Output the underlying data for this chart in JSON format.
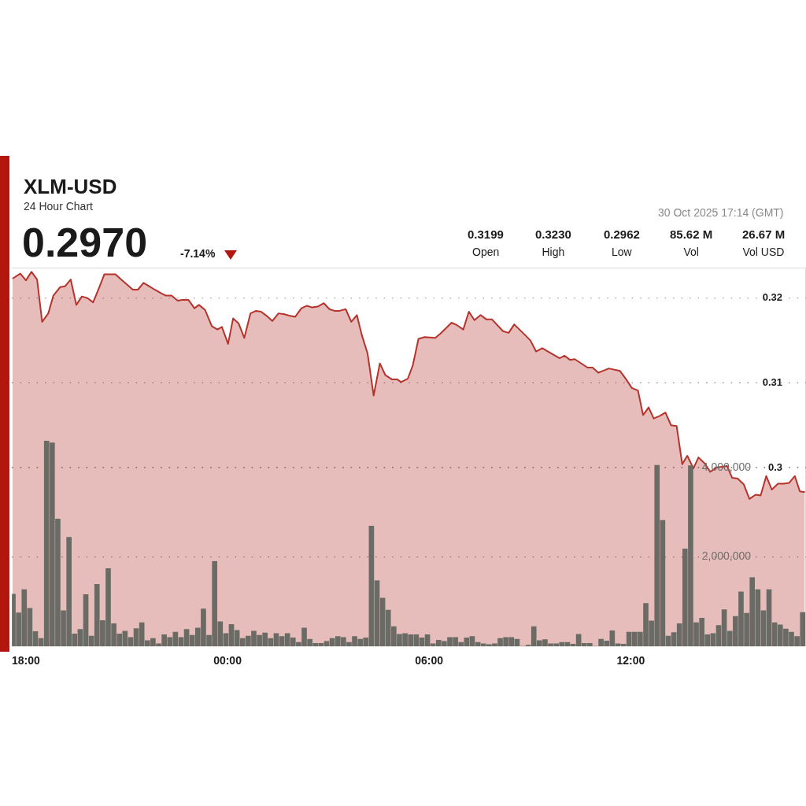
{
  "chart_data": {
    "type": "area",
    "title": "XLM-USD",
    "subtitle": "24 Hour Chart",
    "annotations": [
      "0.2970",
      "-7.14%",
      "0.3199",
      "Open",
      "0.3230",
      "High",
      "0.2962",
      "Low",
      "85.62 M",
      "Vol",
      "26.67 M",
      "Vol USD",
      "30 Oct 2025 17:14 (GMT)"
    ],
    "xlim": [
      "2025-10-29T17:35",
      "2025-10-30T17:13"
    ],
    "xticks": [
      {
        "value": "2025-10-29T18:00",
        "label": "18:00"
      },
      {
        "value": "2025-10-30T00:00",
        "label": "00:00"
      },
      {
        "value": "2025-10-30T06:00",
        "label": "06:00"
      },
      {
        "value": "2025-10-30T12:00",
        "label": "12:00"
      }
    ],
    "ylim": [
      0.2789,
      0.3236
    ],
    "yticks": [
      0.3,
      0.31,
      0.32
    ],
    "y2lim": [
      0,
      8470000
    ],
    "y2ticks": [
      {
        "value": 2000000,
        "label": "2,000,000"
      },
      {
        "value": 4000000,
        "label": "4,000,000"
      }
    ],
    "grid": "y",
    "marker": "none",
    "series": [
      {
        "color": "#b5332b",
        "x": [
          "2025-10-29T17:36",
          "2025-10-29T17:50",
          "2025-10-29T18:00",
          "2025-10-29T18:10",
          "2025-10-29T18:20",
          "2025-10-29T18:29",
          "2025-10-29T18:40",
          "2025-10-29T18:49",
          "2025-10-29T19:01",
          "2025-10-29T19:10",
          "2025-10-29T19:20",
          "2025-10-29T19:30",
          "2025-10-29T19:40",
          "2025-10-29T19:50",
          "2025-10-29T20:00",
          "2025-10-29T20:10",
          "2025-10-29T20:20",
          "2025-10-29T20:40",
          "2025-10-29T20:50",
          "2025-10-29T21:11",
          "2025-10-29T21:20",
          "2025-10-29T21:30",
          "2025-10-29T21:40",
          "2025-10-29T21:50",
          "2025-10-29T22:01",
          "2025-10-29T22:10",
          "2025-10-29T22:20",
          "2025-10-29T22:31",
          "2025-10-29T22:39",
          "2025-10-29T22:50",
          "2025-10-29T23:01",
          "2025-10-29T23:09",
          "2025-10-29T23:20",
          "2025-10-29T23:32",
          "2025-10-29T23:42",
          "2025-10-29T23:50",
          "2025-10-30T00:01",
          "2025-10-30T00:10",
          "2025-10-30T00:20",
          "2025-10-30T00:30",
          "2025-10-30T00:41",
          "2025-10-30T00:51",
          "2025-10-30T01:00",
          "2025-10-30T01:10",
          "2025-10-30T01:20",
          "2025-10-30T01:31",
          "2025-10-30T01:42",
          "2025-10-30T01:52",
          "2025-10-30T02:01",
          "2025-10-30T02:12",
          "2025-10-30T02:22",
          "2025-10-30T02:31",
          "2025-10-30T02:41",
          "2025-10-30T02:52",
          "2025-10-30T03:02",
          "2025-10-30T03:11",
          "2025-10-30T03:20",
          "2025-10-30T03:31",
          "2025-10-30T03:41",
          "2025-10-30T03:51",
          "2025-10-30T04:00",
          "2025-10-30T04:10",
          "2025-10-30T04:21",
          "2025-10-30T04:32",
          "2025-10-30T04:42",
          "2025-10-30T04:54",
          "2025-10-30T05:03",
          "2025-10-30T05:10",
          "2025-10-30T05:22",
          "2025-10-30T05:31",
          "2025-10-30T05:41",
          "2025-10-30T05:52",
          "2025-10-30T06:11",
          "2025-10-30T06:20",
          "2025-10-30T06:40",
          "2025-10-30T06:50",
          "2025-10-30T07:01",
          "2025-10-30T07:11",
          "2025-10-30T07:21",
          "2025-10-30T07:32",
          "2025-10-30T07:42",
          "2025-10-30T07:52",
          "2025-10-30T08:12",
          "2025-10-30T08:22",
          "2025-10-30T08:32",
          "2025-10-30T08:52",
          "2025-10-30T09:01",
          "2025-10-30T09:11",
          "2025-10-30T09:22",
          "2025-10-30T09:53",
          "2025-10-30T10:02",
          "2025-10-30T10:12",
          "2025-10-30T10:20",
          "2025-10-30T10:43",
          "2025-10-30T10:52",
          "2025-10-30T11:02",
          "2025-10-30T11:21",
          "2025-10-30T11:41",
          "2025-10-30T11:52",
          "2025-10-30T12:02",
          "2025-10-30T12:13",
          "2025-10-30T12:22",
          "2025-10-30T12:32",
          "2025-10-30T12:41",
          "2025-10-30T12:52",
          "2025-10-30T13:02",
          "2025-10-30T13:12",
          "2025-10-30T13:22",
          "2025-10-30T13:32",
          "2025-10-30T13:41",
          "2025-10-30T13:52",
          "2025-10-30T14:01",
          "2025-10-30T14:12",
          "2025-10-30T14:22",
          "2025-10-30T14:33",
          "2025-10-30T14:52",
          "2025-10-30T15:01",
          "2025-10-30T15:11",
          "2025-10-30T15:22",
          "2025-10-30T15:32",
          "2025-10-30T15:43",
          "2025-10-30T15:52",
          "2025-10-30T16:02",
          "2025-10-30T16:12",
          "2025-10-30T16:23",
          "2025-10-30T16:33",
          "2025-10-30T16:43",
          "2025-10-30T16:53",
          "2025-10-30T17:02",
          "2025-10-30T17:11"
        ],
        "values": [
          0.3223,
          0.3229,
          0.3221,
          0.3231,
          0.3222,
          0.3172,
          0.3182,
          0.3203,
          0.3213,
          0.3214,
          0.3222,
          0.3192,
          0.3202,
          0.32,
          0.3195,
          0.3211,
          0.3228,
          0.3228,
          0.3222,
          0.321,
          0.321,
          0.3218,
          0.3214,
          0.321,
          0.3206,
          0.3203,
          0.3203,
          0.3197,
          0.3198,
          0.3198,
          0.3188,
          0.3192,
          0.3186,
          0.3167,
          0.3163,
          0.3166,
          0.3146,
          0.3176,
          0.317,
          0.3153,
          0.3182,
          0.3185,
          0.3184,
          0.3179,
          0.3173,
          0.3182,
          0.3181,
          0.3179,
          0.3178,
          0.3188,
          0.3191,
          0.3189,
          0.319,
          0.3194,
          0.3187,
          0.3185,
          0.3185,
          0.3187,
          0.3172,
          0.318,
          0.3156,
          0.3135,
          0.3085,
          0.3123,
          0.3109,
          0.3104,
          0.3104,
          0.3101,
          0.3105,
          0.3121,
          0.3152,
          0.3154,
          0.3153,
          0.3158,
          0.3171,
          0.3168,
          0.3163,
          0.3184,
          0.3174,
          0.318,
          0.3175,
          0.3175,
          0.3161,
          0.3159,
          0.3169,
          0.3156,
          0.315,
          0.3137,
          0.3141,
          0.3129,
          0.3132,
          0.3127,
          0.3128,
          0.3118,
          0.3118,
          0.3112,
          0.3117,
          0.3114,
          0.3104,
          0.3094,
          0.3091,
          0.3062,
          0.3071,
          0.3058,
          0.3061,
          0.3065,
          0.305,
          0.3049,
          0.3004,
          0.3014,
          0.2999,
          0.3012,
          0.3005,
          0.2995,
          0.3,
          0.3002,
          0.2988,
          0.2987,
          0.298,
          0.2963,
          0.2968,
          0.2967,
          0.299,
          0.2974,
          0.2981,
          0.2981,
          0.2982,
          0.299,
          0.2972,
          0.2971
        ]
      },
      {
        "type": "bar",
        "axis": "y2",
        "color": "#6b6b66",
        "x": [
          "2025-10-29T17:37",
          "2025-10-29T17:47",
          "2025-10-29T17:57",
          "2025-10-29T18:07",
          "2025-10-29T18:17",
          "2025-10-29T18:27",
          "2025-10-29T18:37",
          "2025-10-29T18:47",
          "2025-10-29T18:57",
          "2025-10-29T19:07",
          "2025-10-29T19:17",
          "2025-10-29T19:27",
          "2025-10-29T19:37",
          "2025-10-29T19:47",
          "2025-10-29T19:57",
          "2025-10-29T20:07",
          "2025-10-29T20:17",
          "2025-10-29T20:27",
          "2025-10-29T20:37",
          "2025-10-29T20:47",
          "2025-10-29T20:57",
          "2025-10-29T21:07",
          "2025-10-29T21:17",
          "2025-10-29T21:27",
          "2025-10-29T21:37",
          "2025-10-29T21:47",
          "2025-10-29T21:57",
          "2025-10-29T22:07",
          "2025-10-29T22:17",
          "2025-10-29T22:27",
          "2025-10-29T22:37",
          "2025-10-29T22:47",
          "2025-10-29T22:57",
          "2025-10-29T23:07",
          "2025-10-29T23:17",
          "2025-10-29T23:27",
          "2025-10-29T23:37",
          "2025-10-29T23:47",
          "2025-10-29T23:57",
          "2025-10-30T00:07",
          "2025-10-30T00:17",
          "2025-10-30T00:27",
          "2025-10-30T00:37",
          "2025-10-30T00:47",
          "2025-10-30T00:57",
          "2025-10-30T01:07",
          "2025-10-30T01:17",
          "2025-10-30T01:27",
          "2025-10-30T01:37",
          "2025-10-30T01:47",
          "2025-10-30T01:57",
          "2025-10-30T02:07",
          "2025-10-30T02:17",
          "2025-10-30T02:27",
          "2025-10-30T02:37",
          "2025-10-30T02:47",
          "2025-10-30T02:57",
          "2025-10-30T03:07",
          "2025-10-30T03:17",
          "2025-10-30T03:27",
          "2025-10-30T03:37",
          "2025-10-30T03:47",
          "2025-10-30T03:57",
          "2025-10-30T04:07",
          "2025-10-30T04:17",
          "2025-10-30T04:27",
          "2025-10-30T04:37",
          "2025-10-30T04:47",
          "2025-10-30T04:57",
          "2025-10-30T05:07",
          "2025-10-30T05:17",
          "2025-10-30T05:27",
          "2025-10-30T05:37",
          "2025-10-30T05:47",
          "2025-10-30T05:57",
          "2025-10-30T06:07",
          "2025-10-30T06:17",
          "2025-10-30T06:27",
          "2025-10-30T06:37",
          "2025-10-30T06:47",
          "2025-10-30T06:57",
          "2025-10-30T07:07",
          "2025-10-30T07:17",
          "2025-10-30T07:27",
          "2025-10-30T07:37",
          "2025-10-30T07:47",
          "2025-10-30T07:57",
          "2025-10-30T08:07",
          "2025-10-30T08:17",
          "2025-10-30T08:27",
          "2025-10-30T08:37",
          "2025-10-30T08:47",
          "2025-10-30T08:57",
          "2025-10-30T09:07",
          "2025-10-30T09:17",
          "2025-10-30T09:27",
          "2025-10-30T09:37",
          "2025-10-30T09:47",
          "2025-10-30T09:57",
          "2025-10-30T10:07",
          "2025-10-30T10:17",
          "2025-10-30T10:27",
          "2025-10-30T10:37",
          "2025-10-30T10:47",
          "2025-10-30T10:57",
          "2025-10-30T11:07",
          "2025-10-30T11:17",
          "2025-10-30T11:27",
          "2025-10-30T11:37",
          "2025-10-30T11:47",
          "2025-10-30T11:57",
          "2025-10-30T12:07",
          "2025-10-30T12:17",
          "2025-10-30T12:27",
          "2025-10-30T12:37",
          "2025-10-30T12:47",
          "2025-10-30T12:57",
          "2025-10-30T13:07",
          "2025-10-30T13:17",
          "2025-10-30T13:27",
          "2025-10-30T13:37",
          "2025-10-30T13:47",
          "2025-10-30T13:57",
          "2025-10-30T14:07",
          "2025-10-30T14:17",
          "2025-10-30T14:27",
          "2025-10-30T14:37",
          "2025-10-30T14:47",
          "2025-10-30T14:57",
          "2025-10-30T15:07",
          "2025-10-30T15:17",
          "2025-10-30T15:27",
          "2025-10-30T15:37",
          "2025-10-30T15:47",
          "2025-10-30T15:57",
          "2025-10-30T16:07",
          "2025-10-30T16:17",
          "2025-10-30T16:27",
          "2025-10-30T16:37",
          "2025-10-30T16:47",
          "2025-10-30T16:57",
          "2025-10-30T17:07"
        ],
        "values": [
          1170000,
          750000,
          1270000,
          850000,
          330000,
          180000,
          4590000,
          4550000,
          2850000,
          800000,
          2440000,
          280000,
          380000,
          1160000,
          230000,
          1390000,
          580000,
          1740000,
          510000,
          280000,
          340000,
          200000,
          400000,
          530000,
          130000,
          180000,
          60000,
          260000,
          200000,
          320000,
          200000,
          380000,
          250000,
          410000,
          840000,
          250000,
          1900000,
          550000,
          290000,
          490000,
          360000,
          180000,
          230000,
          340000,
          250000,
          300000,
          180000,
          290000,
          220000,
          290000,
          190000,
          90000,
          410000,
          160000,
          70000,
          70000,
          110000,
          180000,
          220000,
          200000,
          90000,
          220000,
          160000,
          190000,
          2690000,
          1470000,
          1080000,
          810000,
          440000,
          270000,
          290000,
          260000,
          260000,
          190000,
          260000,
          60000,
          140000,
          110000,
          200000,
          200000,
          90000,
          190000,
          220000,
          90000,
          60000,
          40000,
          60000,
          180000,
          200000,
          200000,
          160000,
          0,
          30000,
          440000,
          130000,
          150000,
          60000,
          60000,
          90000,
          90000,
          50000,
          270000,
          70000,
          70000,
          0,
          160000,
          120000,
          350000,
          60000,
          50000,
          320000,
          320000,
          320000,
          960000,
          570000,
          4050000,
          2820000,
          230000,
          310000,
          510000,
          2180000,
          4040000,
          530000,
          630000,
          260000,
          290000,
          470000,
          820000,
          340000,
          670000,
          1220000,
          740000,
          1540000,
          1270000,
          800000,
          1270000,
          530000,
          480000,
          390000,
          320000,
          220000,
          760000
        ]
      }
    ]
  }
}
